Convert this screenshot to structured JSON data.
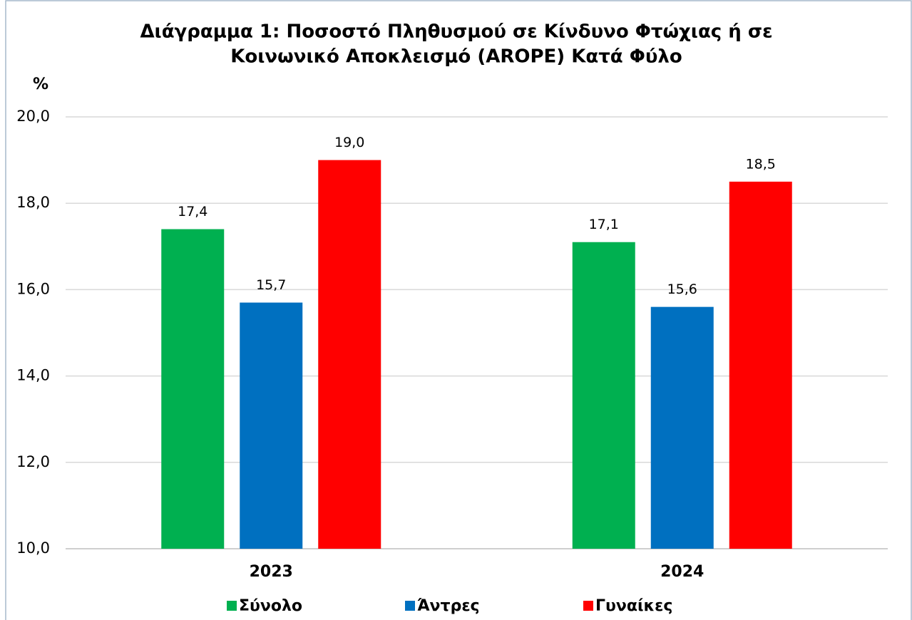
{
  "chart_data": {
    "type": "bar",
    "title": [
      "Διάγραμμα 1: Ποσοστό Πληθυσμού σε Κίνδυνο Φτώχιας ή σε",
      "Κοινωνικό Αποκλεισμό (AROPE) Κατά Φύλο"
    ],
    "y_label": "%",
    "categories": [
      "2023",
      "2024"
    ],
    "series": [
      {
        "name": "Σύνολο",
        "color": "#00b050",
        "values": [
          17.4,
          17.1
        ],
        "value_labels": [
          "17,4",
          "17,1"
        ]
      },
      {
        "name": "Άντρες",
        "color": "#0070c0",
        "values": [
          15.7,
          15.6
        ],
        "value_labels": [
          "15,7",
          "15,6"
        ]
      },
      {
        "name": "Γυναίκες",
        "color": "#ff0000",
        "values": [
          19.0,
          18.5
        ],
        "value_labels": [
          "19,0",
          "18,5"
        ]
      }
    ],
    "ylim": [
      10,
      20
    ],
    "yticks": [
      {
        "value": 10,
        "label": "10,0"
      },
      {
        "value": 12,
        "label": "12,0"
      },
      {
        "value": 14,
        "label": "14,0"
      },
      {
        "value": 16,
        "label": "16,0"
      },
      {
        "value": 18,
        "label": "18,0"
      },
      {
        "value": 20,
        "label": "20,0"
      }
    ],
    "grid": true,
    "legend": "bottom"
  }
}
